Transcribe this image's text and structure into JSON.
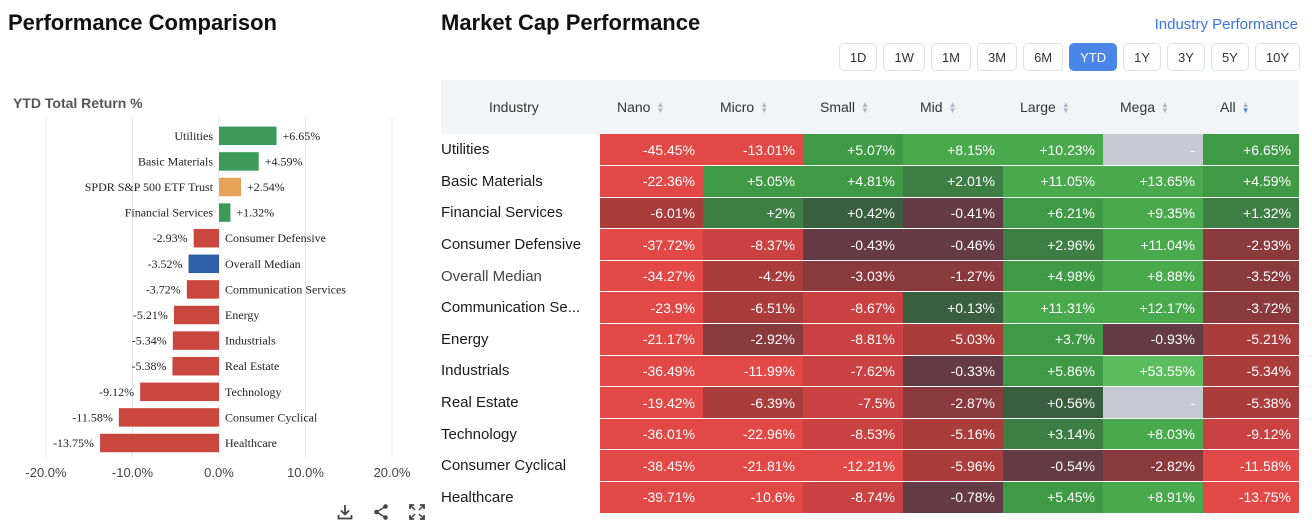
{
  "left": {
    "title": "Performance Comparison",
    "chart_data": {
      "type": "bar",
      "orientation": "horizontal",
      "title": "YTD Total Return %",
      "categories": [
        "Utilities",
        "Basic Materials",
        "SPDR S&P 500 ETF Trust",
        "Financial Services",
        "Consumer Defensive",
        "Overall Median",
        "Communication Services",
        "Energy",
        "Industrials",
        "Real Estate",
        "Technology",
        "Consumer Cyclical",
        "Healthcare"
      ],
      "values": [
        6.65,
        4.59,
        2.54,
        1.32,
        -2.93,
        -3.52,
        -3.72,
        -5.21,
        -5.34,
        -5.38,
        -9.12,
        -11.58,
        -13.75
      ],
      "labels": [
        "+6.65%",
        "+4.59%",
        "+2.54%",
        "+1.32%",
        "-2.93%",
        "-3.52%",
        "-3.72%",
        "-5.21%",
        "-5.34%",
        "-5.38%",
        "-9.12%",
        "-11.58%",
        "-13.75%"
      ],
      "colors": [
        "#3b9a5a",
        "#3b9a5a",
        "#e8a25a",
        "#3b9a5a",
        "#c9473f",
        "#2f5fa8",
        "#c9473f",
        "#c9473f",
        "#c9473f",
        "#c9473f",
        "#c9473f",
        "#c9473f",
        "#c9473f"
      ],
      "xlim": [
        -20,
        20
      ],
      "xticks": [
        -20,
        -10,
        0,
        10,
        20
      ],
      "xtick_labels": [
        "-20.0%",
        "-10.0%",
        "0.0%",
        "10.0%",
        "20.0%"
      ],
      "grid": true
    }
  },
  "right": {
    "title": "Market Cap Performance",
    "link": "Industry Performance",
    "periods": [
      "1D",
      "1W",
      "1M",
      "3M",
      "6M",
      "YTD",
      "1Y",
      "3Y",
      "5Y",
      "10Y"
    ],
    "active_period": "YTD",
    "columns": [
      "Industry",
      "Nano",
      "Micro",
      "Small",
      "Mid",
      "Large",
      "Mega",
      "All"
    ],
    "rows": [
      {
        "name": "Utilities",
        "cells": [
          "-45.45%",
          "-13.01%",
          "+5.07%",
          "+8.15%",
          "+10.23%",
          "-",
          "+6.65%"
        ],
        "v": [
          -45.45,
          -13.01,
          5.07,
          8.15,
          10.23,
          null,
          6.65
        ]
      },
      {
        "name": "Basic Materials",
        "cells": [
          "-22.36%",
          "+5.05%",
          "+4.81%",
          "+2.01%",
          "+11.05%",
          "+13.65%",
          "+4.59%"
        ],
        "v": [
          -22.36,
          5.05,
          4.81,
          2.01,
          11.05,
          13.65,
          4.59
        ]
      },
      {
        "name": "Financial Services",
        "cells": [
          "-6.01%",
          "+2%",
          "+0.42%",
          "-0.41%",
          "+6.21%",
          "+9.35%",
          "+1.32%"
        ],
        "v": [
          -6.01,
          2,
          0.42,
          -0.41,
          6.21,
          9.35,
          1.32
        ]
      },
      {
        "name": "Consumer Defensive",
        "cells": [
          "-37.72%",
          "-8.37%",
          "-0.43%",
          "-0.46%",
          "+2.96%",
          "+11.04%",
          "-2.93%"
        ],
        "v": [
          -37.72,
          -8.37,
          -0.43,
          -0.46,
          2.96,
          11.04,
          -2.93
        ]
      },
      {
        "name": "Overall Median",
        "cells": [
          "-34.27%",
          "-4.2%",
          "-3.03%",
          "-1.27%",
          "+4.98%",
          "+8.88%",
          "-3.52%"
        ],
        "v": [
          -34.27,
          -4.2,
          -3.03,
          -1.27,
          4.98,
          8.88,
          -3.52
        ],
        "muted": true
      },
      {
        "name": "Communication Se...",
        "cells": [
          "-23.9%",
          "-6.51%",
          "-8.67%",
          "+0.13%",
          "+11.31%",
          "+12.17%",
          "-3.72%"
        ],
        "v": [
          -23.9,
          -6.51,
          -8.67,
          0.13,
          11.31,
          12.17,
          -3.72
        ]
      },
      {
        "name": "Energy",
        "cells": [
          "-21.17%",
          "-2.92%",
          "-8.81%",
          "-5.03%",
          "+3.7%",
          "-0.93%",
          "-5.21%"
        ],
        "v": [
          -21.17,
          -2.92,
          -8.81,
          -5.03,
          3.7,
          -0.93,
          -5.21
        ]
      },
      {
        "name": "Industrials",
        "cells": [
          "-36.49%",
          "-11.99%",
          "-7.62%",
          "-0.33%",
          "+5.86%",
          "+53.55%",
          "-5.34%"
        ],
        "v": [
          -36.49,
          -11.99,
          -7.62,
          -0.33,
          5.86,
          53.55,
          -5.34
        ]
      },
      {
        "name": "Real Estate",
        "cells": [
          "-19.42%",
          "-6.39%",
          "-7.5%",
          "-2.87%",
          "+0.56%",
          "-",
          "-5.38%"
        ],
        "v": [
          -19.42,
          -6.39,
          -7.5,
          -2.87,
          0.56,
          null,
          -5.38
        ]
      },
      {
        "name": "Technology",
        "cells": [
          "-36.01%",
          "-22.96%",
          "-8.53%",
          "-5.16%",
          "+3.14%",
          "+8.03%",
          "-9.12%"
        ],
        "v": [
          -36.01,
          -22.96,
          -8.53,
          -5.16,
          3.14,
          8.03,
          -9.12
        ]
      },
      {
        "name": "Consumer Cyclical",
        "cells": [
          "-38.45%",
          "-21.81%",
          "-12.21%",
          "-5.96%",
          "-0.54%",
          "-2.82%",
          "-11.58%"
        ],
        "v": [
          -38.45,
          -21.81,
          -12.21,
          -5.96,
          -0.54,
          -2.82,
          -11.58
        ]
      },
      {
        "name": "Healthcare",
        "cells": [
          "-39.71%",
          "-10.6%",
          "-8.74%",
          "-0.78%",
          "+5.45%",
          "+8.91%",
          "-13.75%"
        ],
        "v": [
          -39.71,
          -10.6,
          -8.74,
          -0.78,
          5.45,
          8.91,
          -13.75
        ]
      }
    ]
  },
  "toolbar": {
    "icons": [
      "download-icon",
      "share-icon",
      "fullscreen-icon"
    ]
  }
}
